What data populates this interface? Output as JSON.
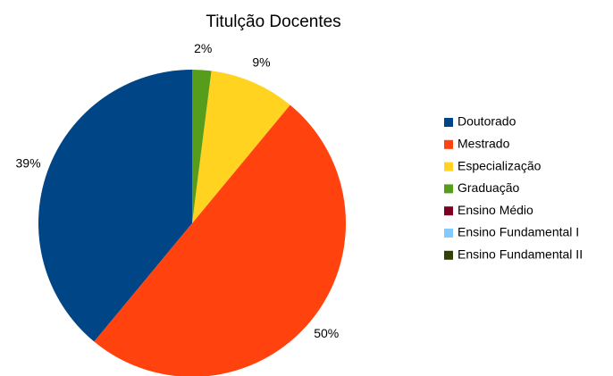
{
  "chart_data": {
    "type": "pie",
    "title": "Titulção Docentes",
    "categories": [
      "Doutorado",
      "Mestrado",
      "Especialização",
      "Graduação",
      "Ensino Médio",
      "Ensino Fundamental I",
      "Ensino Fundamental II"
    ],
    "values": [
      39,
      50,
      9,
      2,
      0,
      0,
      0
    ],
    "value_labels": [
      "39%",
      "50%",
      "9%",
      "2%",
      null,
      null,
      null
    ],
    "colors": [
      "#004586",
      "#ff420e",
      "#ffd320",
      "#579d1c",
      "#7e0021",
      "#83caff",
      "#314004"
    ],
    "legend": "right"
  }
}
